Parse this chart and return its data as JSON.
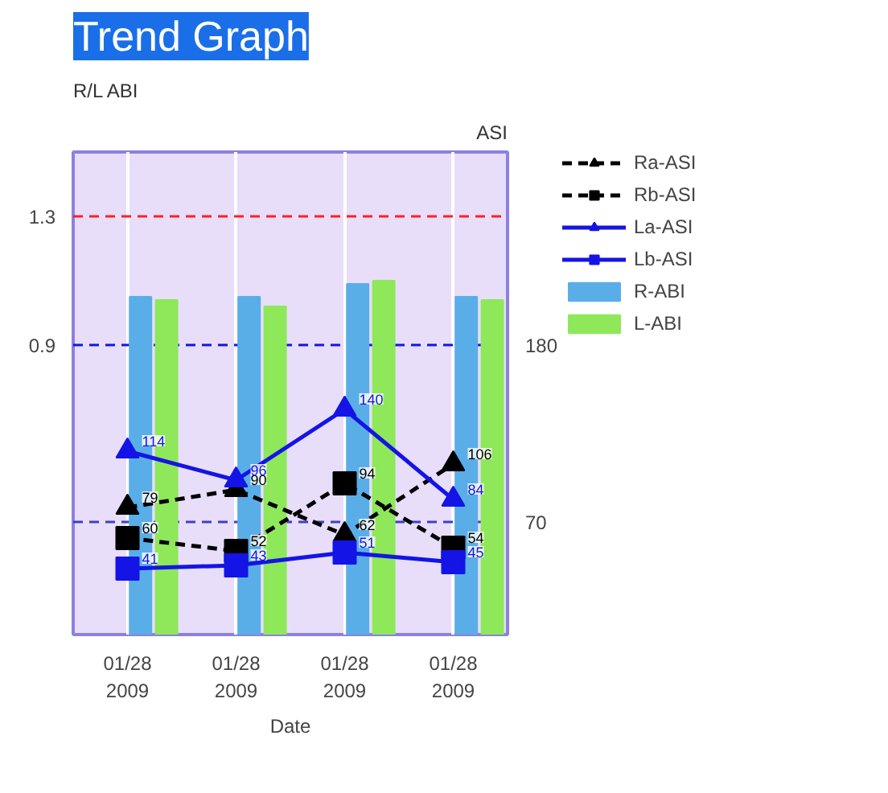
{
  "chart_data": {
    "type": "bar",
    "title": "Trend Graph",
    "xlabel": "Date",
    "ylabel": "R/L ABI",
    "y2label": "ASI",
    "categories": [
      "01/28\n2009",
      "01/28\n2009",
      "01/28\n2009",
      "01/28\n2009"
    ],
    "series": [
      {
        "name": "Ra-ASI",
        "type": "line",
        "axis": "y2",
        "color": "#000000",
        "marker": "triangle",
        "line_style": "dashed",
        "values": [
          79,
          90,
          62,
          106
        ],
        "value_labels": [
          "79",
          "90",
          "62",
          "106"
        ]
      },
      {
        "name": "Rb-ASI",
        "type": "line",
        "axis": "y2",
        "color": "#000000",
        "marker": "square",
        "line_style": "dashed",
        "values": [
          60,
          52,
          94,
          54
        ],
        "value_labels": [
          "60",
          "52",
          "94",
          "54"
        ]
      },
      {
        "name": "La-ASI",
        "type": "line",
        "axis": "y2",
        "color": "#1414e6",
        "marker": "triangle",
        "line_style": "solid",
        "values": [
          114,
          96,
          140,
          84
        ],
        "value_labels": [
          "114",
          "96",
          "140",
          "84"
        ]
      },
      {
        "name": "Lb-ASI",
        "type": "line",
        "axis": "y2",
        "color": "#1414e6",
        "marker": "square",
        "line_style": "solid",
        "values": [
          41,
          43,
          51,
          45
        ],
        "value_labels": [
          "41",
          "43",
          "51",
          "45"
        ]
      },
      {
        "name": "R-ABI",
        "type": "bar",
        "color": "#5aaee8",
        "values": [
          1.05,
          1.05,
          1.09,
          1.05
        ]
      },
      {
        "name": "L-ABI",
        "type": "bar",
        "color": "#8ee85a",
        "values": [
          1.04,
          1.02,
          1.1,
          1.04
        ]
      }
    ],
    "ylim": [
      0,
      1.5
    ],
    "yticks": [
      0.9,
      1.3
    ],
    "y2lim": [
      0,
      300
    ],
    "y2ticks": [
      70,
      180
    ],
    "ref_lines": [
      {
        "axis": "y",
        "value": 1.3,
        "color": "#ff2020",
        "line_style": "dashed"
      },
      {
        "axis": "y",
        "value": 0.9,
        "color": "#1414e6",
        "line_style": "dashed"
      },
      {
        "axis": "y2",
        "value": 70,
        "color": "#4040c0",
        "line_style": "dashed"
      }
    ],
    "grid": "x",
    "legend": "right"
  }
}
